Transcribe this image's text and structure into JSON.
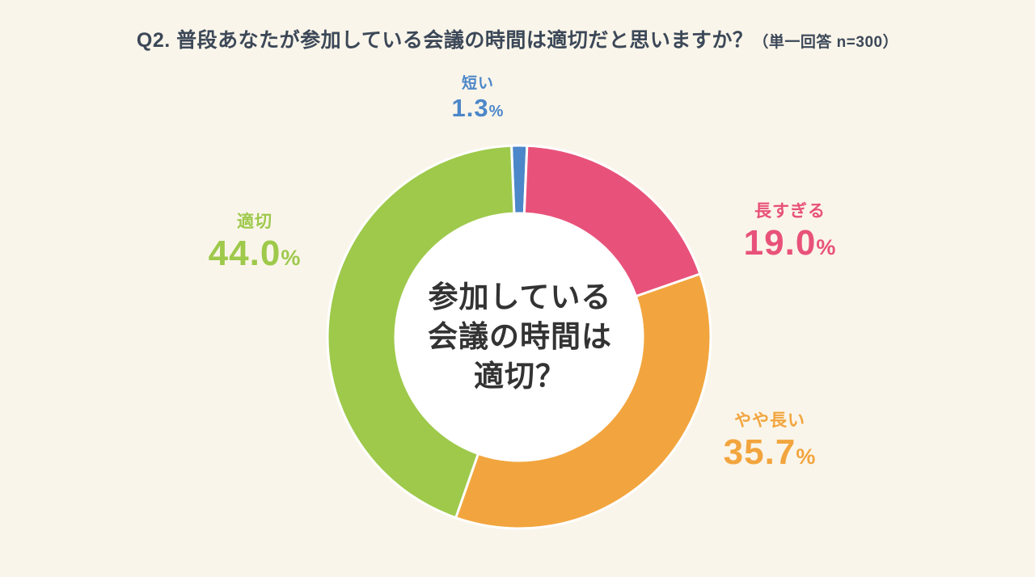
{
  "page": {
    "background": "#FAF5EA",
    "title": "Q2. 普段あなたが参加している会議の時間は適切だと思いますか？",
    "title_suffix": "（単一回答 n=300）"
  },
  "center_label": {
    "lines": [
      "参加している",
      "会議の時間は",
      "適切？"
    ]
  },
  "chart_data": {
    "type": "pie",
    "donut": true,
    "title": "Q2. 普段あなたが参加している会議の時間は適切だと思いますか？（単一回答 n=300）",
    "n": 300,
    "unit": "%",
    "start_angle_deg": -2.3,
    "clockwise": true,
    "legend_position": "around",
    "center_text": "参加している会議の時間は適切？",
    "segments": [
      {
        "label": "短い",
        "value": 1.3,
        "display": "1.3",
        "color": "#4C87C9"
      },
      {
        "label": "長すぎる",
        "value": 19.0,
        "display": "19.0",
        "color": "#E8527A"
      },
      {
        "label": "やや長い",
        "value": 35.7,
        "display": "35.7",
        "color": "#F2A53E"
      },
      {
        "label": "適切",
        "value": 44.0,
        "display": "44.0",
        "color": "#9EC94B"
      }
    ]
  }
}
